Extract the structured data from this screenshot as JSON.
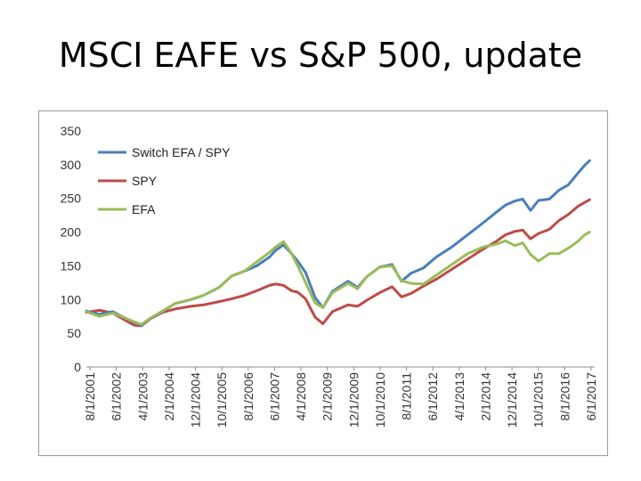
{
  "slide": {
    "title": "MSCI EAFE vs S&P 500, update"
  },
  "chart_data": {
    "type": "line",
    "title": "",
    "xlabel": "",
    "ylabel": "",
    "ylim": [
      0,
      350
    ],
    "yticks": [
      0,
      50,
      100,
      150,
      200,
      250,
      300,
      350
    ],
    "categories": [
      "8/1/2001",
      "6/1/2002",
      "4/1/2003",
      "2/1/2004",
      "12/1/2004",
      "10/1/2005",
      "8/1/2006",
      "6/1/2007",
      "4/1/2008",
      "2/1/2009",
      "12/1/2009",
      "10/1/2010",
      "8/1/2011",
      "6/1/2012",
      "4/1/2013",
      "2/1/2014",
      "12/1/2014",
      "10/1/2015",
      "8/1/2016",
      "6/1/2017"
    ],
    "grid": false,
    "legend_position": "top-left",
    "series": [
      {
        "name": "Switch EFA / SPY",
        "color": "#4a7ebb",
        "x": [
          2001.58,
          2002.0,
          2002.42,
          2002.75,
          2003.1,
          2003.33,
          2003.6,
          2004.0,
          2004.4,
          2004.9,
          2005.3,
          2005.8,
          2006.2,
          2006.6,
          2007.0,
          2007.4,
          2007.6,
          2007.85,
          2008.1,
          2008.3,
          2008.55,
          2008.85,
          2009.1,
          2009.4,
          2009.9,
          2010.2,
          2010.5,
          2010.9,
          2011.3,
          2011.6,
          2011.9,
          2012.3,
          2012.7,
          2013.2,
          2013.7,
          2014.2,
          2014.6,
          2014.9,
          2015.2,
          2015.45,
          2015.7,
          2015.95,
          2016.3,
          2016.6,
          2016.9,
          2017.2,
          2017.42,
          2017.58
        ],
        "values": [
          83,
          78,
          82,
          74,
          66,
          62,
          72,
          82,
          94,
          100,
          106,
          118,
          135,
          142,
          150,
          163,
          173,
          181,
          168,
          157,
          140,
          103,
          88,
          112,
          127,
          118,
          134,
          148,
          152,
          127,
          139,
          147,
          163,
          178,
          196,
          214,
          229,
          240,
          246,
          249,
          232,
          247,
          249,
          262,
          270,
          287,
          299,
          306
        ]
      },
      {
        "name": "SPY",
        "color": "#be4b48",
        "x": [
          2001.58,
          2002.0,
          2002.42,
          2002.75,
          2003.1,
          2003.33,
          2003.6,
          2004.0,
          2004.4,
          2004.9,
          2005.3,
          2005.8,
          2006.2,
          2006.6,
          2007.0,
          2007.4,
          2007.6,
          2007.85,
          2008.1,
          2008.3,
          2008.55,
          2008.85,
          2009.1,
          2009.4,
          2009.9,
          2010.2,
          2010.5,
          2010.9,
          2011.3,
          2011.6,
          2011.9,
          2012.3,
          2012.7,
          2013.2,
          2013.7,
          2014.2,
          2014.6,
          2014.9,
          2015.2,
          2015.45,
          2015.7,
          2015.95,
          2016.3,
          2016.6,
          2016.9,
          2017.2,
          2017.42,
          2017.58
        ],
        "values": [
          81,
          84,
          80,
          71,
          62,
          61,
          71,
          81,
          86,
          90,
          92,
          97,
          101,
          106,
          113,
          121,
          123,
          121,
          113,
          111,
          101,
          74,
          64,
          82,
          92,
          90,
          99,
          110,
          119,
          104,
          109,
          120,
          130,
          145,
          160,
          175,
          186,
          196,
          201,
          203,
          190,
          198,
          204,
          217,
          226,
          238,
          244,
          248
        ]
      },
      {
        "name": "EFA",
        "color": "#9bbb59",
        "x": [
          2001.58,
          2002.0,
          2002.42,
          2002.75,
          2003.1,
          2003.33,
          2003.6,
          2004.0,
          2004.4,
          2004.9,
          2005.3,
          2005.8,
          2006.2,
          2006.6,
          2007.0,
          2007.4,
          2007.6,
          2007.85,
          2008.1,
          2008.3,
          2008.55,
          2008.85,
          2009.1,
          2009.4,
          2009.9,
          2010.2,
          2010.5,
          2010.9,
          2011.3,
          2011.6,
          2011.9,
          2012.3,
          2012.7,
          2013.2,
          2013.7,
          2014.2,
          2014.6,
          2014.9,
          2015.2,
          2015.45,
          2015.7,
          2015.95,
          2016.3,
          2016.6,
          2016.9,
          2017.2,
          2017.42,
          2017.58
        ],
        "values": [
          82,
          75,
          80,
          74,
          67,
          63,
          72,
          83,
          94,
          100,
          106,
          118,
          135,
          142,
          156,
          170,
          178,
          186,
          168,
          150,
          125,
          95,
          88,
          110,
          124,
          116,
          134,
          148,
          150,
          128,
          124,
          123,
          136,
          152,
          168,
          178,
          182,
          187,
          180,
          184,
          167,
          157,
          168,
          168,
          176,
          186,
          196,
          200
        ]
      }
    ]
  }
}
